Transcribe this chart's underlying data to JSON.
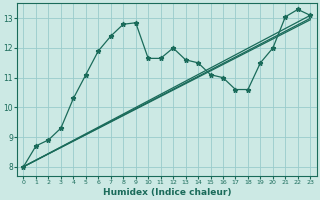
{
  "title": "",
  "xlabel": "Humidex (Indice chaleur)",
  "background_color": "#cce9e4",
  "grid_color": "#99cccc",
  "line_color": "#1a6b5a",
  "xlim": [
    -0.5,
    23.5
  ],
  "ylim": [
    7.7,
    13.5
  ],
  "xticks": [
    0,
    1,
    2,
    3,
    4,
    5,
    6,
    7,
    8,
    9,
    10,
    11,
    12,
    13,
    14,
    15,
    16,
    17,
    18,
    19,
    20,
    21,
    22,
    23
  ],
  "yticks": [
    8,
    9,
    10,
    11,
    12,
    13
  ],
  "line1_x": [
    0,
    1,
    2,
    3,
    4,
    5,
    6,
    7,
    8,
    9,
    10,
    11,
    12,
    13,
    14,
    15,
    16,
    17,
    18,
    19,
    20,
    21,
    22,
    23
  ],
  "line1_y": [
    8.0,
    8.7,
    8.9,
    9.3,
    10.3,
    11.1,
    11.9,
    12.4,
    12.8,
    12.85,
    11.65,
    11.65,
    12.0,
    11.6,
    11.5,
    11.1,
    11.0,
    10.6,
    10.6,
    11.5,
    12.0,
    13.05,
    13.3,
    13.1
  ],
  "line2_x": [
    0,
    23
  ],
  "line2_y": [
    8.0,
    13.1
  ],
  "line3_x": [
    0,
    23
  ],
  "line3_y": [
    8.0,
    13.0
  ],
  "line4_x": [
    0,
    23
  ],
  "line4_y": [
    8.0,
    12.95
  ]
}
